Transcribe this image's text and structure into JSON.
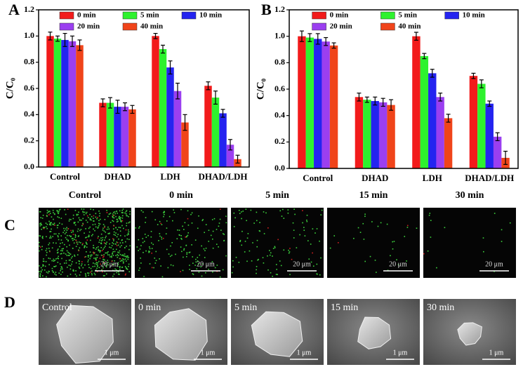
{
  "chart_data": [
    {
      "type": "bar",
      "label": "A",
      "ylabel": "C/C₀",
      "categories": [
        "Control",
        "DHAD",
        "LDH",
        "DHAD/LDH"
      ],
      "series": [
        {
          "name": "0 min",
          "color": "#f21b1b",
          "values": [
            1.0,
            0.49,
            1.0,
            0.62
          ],
          "errors": [
            0.03,
            0.03,
            0.02,
            0.03
          ]
        },
        {
          "name": "5 min",
          "color": "#2ef22e",
          "values": [
            0.98,
            0.49,
            0.9,
            0.53
          ],
          "errors": [
            0.02,
            0.04,
            0.03,
            0.05
          ]
        },
        {
          "name": "10 min",
          "color": "#2424f0",
          "values": [
            0.97,
            0.46,
            0.76,
            0.41
          ],
          "errors": [
            0.05,
            0.05,
            0.05,
            0.03
          ]
        },
        {
          "name": "20 min",
          "color": "#9b3ff0",
          "values": [
            0.96,
            0.46,
            0.58,
            0.17
          ],
          "errors": [
            0.04,
            0.03,
            0.06,
            0.04
          ]
        },
        {
          "name": "40 min",
          "color": "#f0441a",
          "values": [
            0.93,
            0.44,
            0.34,
            0.06
          ],
          "errors": [
            0.04,
            0.03,
            0.06,
            0.03
          ]
        }
      ],
      "ylim": [
        0,
        1.2
      ],
      "yticks": [
        {
          "value": 0,
          "label": "0.0"
        },
        0.2,
        0.4,
        0.6,
        0.8,
        {
          "value": 1,
          "label": "1.0"
        },
        1.2
      ]
    },
    {
      "type": "bar",
      "label": "B",
      "ylabel": "C/C₀",
      "categories": [
        "Control",
        "DHAD",
        "LDH",
        "DHAD/LDH"
      ],
      "series": [
        {
          "name": "0 min",
          "color": "#f21b1b",
          "values": [
            1.0,
            0.54,
            1.0,
            0.7
          ],
          "errors": [
            0.04,
            0.03,
            0.03,
            0.02
          ]
        },
        {
          "name": "5 min",
          "color": "#2ef22e",
          "values": [
            0.99,
            0.52,
            0.85,
            0.64
          ],
          "errors": [
            0.03,
            0.02,
            0.02,
            0.03
          ]
        },
        {
          "name": "10 min",
          "color": "#2424f0",
          "values": [
            0.98,
            0.51,
            0.72,
            0.49
          ],
          "errors": [
            0.04,
            0.03,
            0.03,
            0.02
          ]
        },
        {
          "name": "20 min",
          "color": "#9b3ff0",
          "values": [
            0.96,
            0.5,
            0.54,
            0.24
          ],
          "errors": [
            0.03,
            0.03,
            0.03,
            0.03
          ]
        },
        {
          "name": "40 min",
          "color": "#f0441a",
          "values": [
            0.93,
            0.48,
            0.38,
            0.08
          ],
          "errors": [
            0.02,
            0.04,
            0.03,
            0.05
          ]
        }
      ],
      "ylim": [
        0,
        1.2
      ],
      "yticks": [
        {
          "value": 0,
          "label": "0.0"
        },
        0.2,
        0.4,
        0.6,
        0.8,
        {
          "value": 1,
          "label": "1.0"
        },
        1.2
      ]
    }
  ],
  "panel_c": {
    "label": "C",
    "columns": [
      "Control",
      "0 min",
      "5 min",
      "15 min",
      "30 min"
    ],
    "scale_bars": [
      "20 μm",
      "20 μm",
      "20 μm",
      "20 μm",
      "20 μm"
    ]
  },
  "panel_d": {
    "label": "D",
    "captions": [
      "Control",
      "0 min",
      "5 min",
      "15 min",
      "30 min"
    ],
    "scale_bars": [
      "1 μm",
      "1 μm",
      "1 μm",
      "1 μm",
      "1 μm"
    ]
  }
}
